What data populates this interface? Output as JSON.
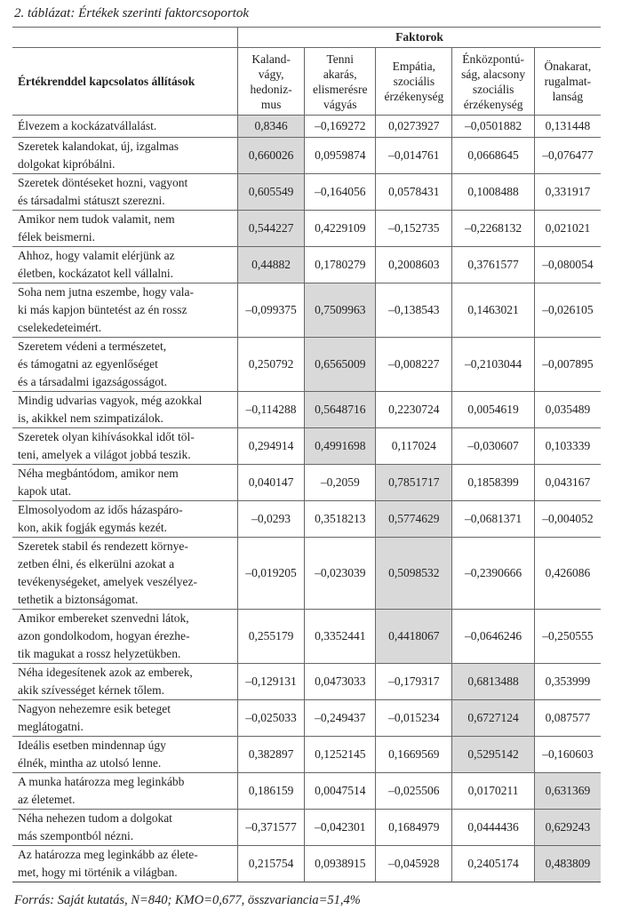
{
  "caption": "2. táblázat: Értékek szerinti faktorcsoportok",
  "header": {
    "group_label": "Faktorok",
    "row_label": "Értékrenddel kapcsolatos állítások",
    "factors": [
      "Kaland-\nvágy,\nhedoniz-\nmus",
      "Tenni\nakarás,\nelismerésre\nvágyás",
      "Empátia,\nszociális\nérzékenység",
      "Énközpontú-\nság, alacsony\nszociális\nérzékenység",
      "Önakarat,\nrugalmat-\nlanság"
    ]
  },
  "highlight_color": "#d9d9d9",
  "rows": [
    {
      "statement": "Élvezem a kockázatvállalást.",
      "highlight": 0,
      "values": [
        "0,8346",
        "–0,169272",
        "0,0273927",
        "–0,0501882",
        "0,131448"
      ]
    },
    {
      "statement": "Szeretek kalandokat, új, izgalmas\ndolgokat kipróbálni.",
      "highlight": 0,
      "values": [
        "0,660026",
        "0,0959874",
        "–0,014761",
        "0,0668645",
        "–0,076477"
      ]
    },
    {
      "statement": "Szeretek döntéseket hozni, vagyont\nés társadalmi státuszt szerezni.",
      "highlight": 0,
      "values": [
        "0,605549",
        "–0,164056",
        "0,0578431",
        "0,1008488",
        "0,331917"
      ]
    },
    {
      "statement": "Amikor nem tudok valamit, nem\nfélek beismerni.",
      "highlight": 0,
      "values": [
        "0,544227",
        "0,4229109",
        "–0,152735",
        "–0,2268132",
        "0,021021"
      ]
    },
    {
      "statement": "Ahhoz, hogy valamit elérjünk az\néletben, kockázatot kell vállalni.",
      "highlight": 0,
      "values": [
        "0,44882",
        "0,1780279",
        "0,2008603",
        "0,3761577",
        "–0,080054"
      ]
    },
    {
      "statement": "Soha nem jutna eszembe, hogy vala-\nki más kapjon büntetést az én rossz\ncselekedeteimért.",
      "highlight": 1,
      "values": [
        "–0,099375",
        "0,7509963",
        "–0,138543",
        "0,1463021",
        "–0,026105"
      ]
    },
    {
      "statement": "Szeretem védeni a természetet,\nés támogatni az egyenlőséget\nés a társadalmi igazságosságot.",
      "highlight": 1,
      "values": [
        "0,250792",
        "0,6565009",
        "–0,008227",
        "–0,2103044",
        "–0,007895"
      ]
    },
    {
      "statement": "Mindig udvarias vagyok, még azokkal\nis, akikkel nem szimpatizálok.",
      "highlight": 1,
      "values": [
        "–0,114288",
        "0,5648716",
        "0,2230724",
        "0,0054619",
        "0,035489"
      ]
    },
    {
      "statement": "Szeretek olyan kihívásokkal időt töl-\nteni, amelyek a világot jobbá teszik.",
      "highlight": 1,
      "values": [
        "0,294914",
        "0,4991698",
        "0,117024",
        "–0,030607",
        "0,103339"
      ]
    },
    {
      "statement": "Néha megbántódom, amikor nem\nkapok utat.",
      "highlight": 2,
      "values": [
        "0,040147",
        "–0,2059",
        "0,7851717",
        "0,1858399",
        "0,043167"
      ]
    },
    {
      "statement": "Elmosolyodom az idős házaspáro-\nkon, akik fogják egymás kezét.",
      "highlight": 2,
      "values": [
        "–0,0293",
        "0,3518213",
        "0,5774629",
        "–0,0681371",
        "–0,004052"
      ]
    },
    {
      "statement": "Szeretek stabil és rendezett környe-\nzetben élni, és elkerülni azokat a\ntevékenységeket, amelyek veszélyez-\ntethetik a biztonságomat.",
      "highlight": 2,
      "values": [
        "–0,019205",
        "–0,023039",
        "0,5098532",
        "–0,2390666",
        "0,426086"
      ]
    },
    {
      "statement": "Amikor embereket szenvedni látok,\nazon gondolkodom, hogyan érezhe-\ntik magukat a rossz helyzetükben.",
      "highlight": 2,
      "values": [
        "0,255179",
        "0,3352441",
        "0,4418067",
        "–0,0646246",
        "–0,250555"
      ]
    },
    {
      "statement": "Néha idegesítenek azok az emberek,\nakik szívességet kérnek tőlem.",
      "highlight": 3,
      "values": [
        "–0,129131",
        "0,0473033",
        "–0,179317",
        "0,6813488",
        "0,353999"
      ]
    },
    {
      "statement": "Nagyon nehezemre esik beteget\nmeglátogatni.",
      "highlight": 3,
      "values": [
        "–0,025033",
        "–0,249437",
        "–0,015234",
        "0,6727124",
        "0,087577"
      ]
    },
    {
      "statement": "Ideális esetben mindennap úgy\nélnék, mintha az utolsó lenne.",
      "highlight": 3,
      "values": [
        "0,382897",
        "0,1252145",
        "0,1669569",
        "0,5295142",
        "–0,160603"
      ]
    },
    {
      "statement": "A munka határozza meg leginkább\naz életemet.",
      "highlight": 4,
      "values": [
        "0,186159",
        "0,0047514",
        "–0,025506",
        "0,0170211",
        "0,631369"
      ]
    },
    {
      "statement": "Néha nehezen tudom a dolgokat\nmás szempontból nézni.",
      "highlight": 4,
      "values": [
        "–0,371577",
        "–0,042301",
        "0,1684979",
        "0,0444436",
        "0,629243"
      ]
    },
    {
      "statement": "Az határozza meg leginkább az élete-\nmet, hogy mi történik a világban.",
      "highlight": 4,
      "values": [
        "0,215754",
        "0,0938915",
        "–0,045928",
        "0,2405174",
        "0,483809"
      ]
    }
  ],
  "source": "Forrás: Saját kutatás, N=840; KMO=0,677, összvariancia=51,4%"
}
